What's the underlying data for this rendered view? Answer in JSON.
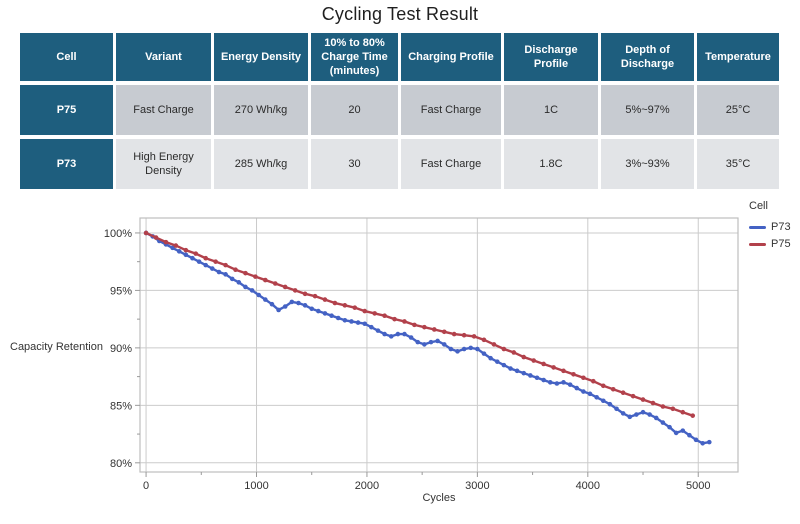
{
  "title": "Cycling Test Result",
  "table": {
    "headers": [
      "Cell",
      "Variant",
      "Energy Density",
      "10% to 80% Charge Time (minutes)",
      "Charging Profile",
      "Discharge Profile",
      "Depth of Discharge",
      "Temperature"
    ],
    "rows": [
      {
        "cell": "P75",
        "variant": "Fast Charge",
        "energy_density": "270 Wh/kg",
        "charge_time": "20",
        "charging_profile": "Fast Charge",
        "discharge_profile": "1C",
        "depth_of_discharge": "5%~97%",
        "temperature": "25°C"
      },
      {
        "cell": "P73",
        "variant": "High Energy Density",
        "energy_density": "285 Wh/kg",
        "charge_time": "30",
        "charging_profile": "Fast Charge",
        "discharge_profile": "1.8C",
        "depth_of_discharge": "3%~93%",
        "temperature": "35°C"
      }
    ]
  },
  "colors": {
    "teal": "#1E5E7E",
    "row1": "#C7CBD1",
    "row2": "#E2E4E7",
    "grid": "#CBCBCB",
    "axis_text": "#333333",
    "p73_blue": "#4462C4",
    "p75_red": "#B2414B"
  },
  "chart_data": {
    "type": "line",
    "title": "",
    "xlabel": "Cycles",
    "ylabel": "Capacity Retention",
    "legend_title": "Cell",
    "legend_position": "right-top",
    "grid": true,
    "xlim": [
      -55,
      5360
    ],
    "ylim": [
      79.2,
      101.3
    ],
    "x_ticks": [
      0,
      1000,
      2000,
      3000,
      4000,
      5000
    ],
    "x_minor_ticks": [
      500,
      1500,
      2500,
      3500,
      4500
    ],
    "y_ticks": [
      100,
      95,
      90,
      85,
      80
    ],
    "y_minor_ticks": [
      97.5,
      92.5,
      87.5,
      82.5
    ],
    "y_tick_suffix": "%",
    "series": [
      {
        "name": "P73",
        "color": "#4462C4",
        "points": [
          [
            0,
            100
          ],
          [
            60,
            99.7
          ],
          [
            120,
            99.3
          ],
          [
            180,
            99.0
          ],
          [
            240,
            98.7
          ],
          [
            300,
            98.4
          ],
          [
            360,
            98.1
          ],
          [
            420,
            97.8
          ],
          [
            480,
            97.5
          ],
          [
            540,
            97.2
          ],
          [
            600,
            96.9
          ],
          [
            660,
            96.6
          ],
          [
            720,
            96.4
          ],
          [
            780,
            96.0
          ],
          [
            840,
            95.7
          ],
          [
            900,
            95.3
          ],
          [
            960,
            95.0
          ],
          [
            1020,
            94.6
          ],
          [
            1080,
            94.2
          ],
          [
            1140,
            93.8
          ],
          [
            1200,
            93.3
          ],
          [
            1260,
            93.6
          ],
          [
            1320,
            94.0
          ],
          [
            1380,
            93.9
          ],
          [
            1440,
            93.7
          ],
          [
            1500,
            93.4
          ],
          [
            1560,
            93.2
          ],
          [
            1620,
            93.0
          ],
          [
            1680,
            92.8
          ],
          [
            1740,
            92.6
          ],
          [
            1800,
            92.4
          ],
          [
            1860,
            92.3
          ],
          [
            1920,
            92.2
          ],
          [
            1980,
            92.1
          ],
          [
            2040,
            91.8
          ],
          [
            2100,
            91.5
          ],
          [
            2160,
            91.2
          ],
          [
            2220,
            91.0
          ],
          [
            2280,
            91.2
          ],
          [
            2340,
            91.2
          ],
          [
            2400,
            90.9
          ],
          [
            2460,
            90.5
          ],
          [
            2520,
            90.3
          ],
          [
            2580,
            90.5
          ],
          [
            2640,
            90.6
          ],
          [
            2700,
            90.3
          ],
          [
            2760,
            89.9
          ],
          [
            2820,
            89.7
          ],
          [
            2880,
            89.9
          ],
          [
            2940,
            90.0
          ],
          [
            3000,
            89.9
          ],
          [
            3060,
            89.5
          ],
          [
            3120,
            89.1
          ],
          [
            3180,
            88.8
          ],
          [
            3240,
            88.5
          ],
          [
            3300,
            88.2
          ],
          [
            3360,
            88.0
          ],
          [
            3420,
            87.8
          ],
          [
            3480,
            87.6
          ],
          [
            3540,
            87.4
          ],
          [
            3600,
            87.2
          ],
          [
            3660,
            87.0
          ],
          [
            3720,
            86.9
          ],
          [
            3780,
            87.0
          ],
          [
            3840,
            86.8
          ],
          [
            3900,
            86.5
          ],
          [
            3960,
            86.2
          ],
          [
            4020,
            86.0
          ],
          [
            4080,
            85.7
          ],
          [
            4140,
            85.4
          ],
          [
            4200,
            85.1
          ],
          [
            4260,
            84.7
          ],
          [
            4320,
            84.3
          ],
          [
            4380,
            84.0
          ],
          [
            4440,
            84.2
          ],
          [
            4500,
            84.4
          ],
          [
            4560,
            84.2
          ],
          [
            4620,
            83.9
          ],
          [
            4680,
            83.5
          ],
          [
            4740,
            83.1
          ],
          [
            4800,
            82.6
          ],
          [
            4860,
            82.8
          ],
          [
            4920,
            82.4
          ],
          [
            4980,
            82.0
          ],
          [
            5040,
            81.7
          ],
          [
            5100,
            81.8
          ]
        ]
      },
      {
        "name": "P75",
        "color": "#B2414B",
        "points": [
          [
            0,
            100
          ],
          [
            90,
            99.6
          ],
          [
            180,
            99.2
          ],
          [
            270,
            98.9
          ],
          [
            360,
            98.5
          ],
          [
            450,
            98.2
          ],
          [
            540,
            97.8
          ],
          [
            630,
            97.5
          ],
          [
            720,
            97.2
          ],
          [
            810,
            96.8
          ],
          [
            900,
            96.5
          ],
          [
            990,
            96.2
          ],
          [
            1080,
            95.9
          ],
          [
            1170,
            95.6
          ],
          [
            1260,
            95.3
          ],
          [
            1350,
            95.0
          ],
          [
            1440,
            94.7
          ],
          [
            1530,
            94.5
          ],
          [
            1620,
            94.2
          ],
          [
            1710,
            93.9
          ],
          [
            1800,
            93.7
          ],
          [
            1890,
            93.5
          ],
          [
            1980,
            93.2
          ],
          [
            2070,
            93.0
          ],
          [
            2160,
            92.8
          ],
          [
            2250,
            92.5
          ],
          [
            2340,
            92.3
          ],
          [
            2430,
            92.0
          ],
          [
            2520,
            91.8
          ],
          [
            2610,
            91.6
          ],
          [
            2700,
            91.4
          ],
          [
            2790,
            91.2
          ],
          [
            2880,
            91.1
          ],
          [
            2970,
            91.0
          ],
          [
            3060,
            90.7
          ],
          [
            3150,
            90.3
          ],
          [
            3240,
            89.9
          ],
          [
            3330,
            89.6
          ],
          [
            3420,
            89.2
          ],
          [
            3510,
            88.9
          ],
          [
            3600,
            88.6
          ],
          [
            3690,
            88.3
          ],
          [
            3780,
            88.0
          ],
          [
            3870,
            87.7
          ],
          [
            3960,
            87.4
          ],
          [
            4050,
            87.1
          ],
          [
            4140,
            86.7
          ],
          [
            4230,
            86.4
          ],
          [
            4320,
            86.1
          ],
          [
            4410,
            85.8
          ],
          [
            4500,
            85.5
          ],
          [
            4590,
            85.2
          ],
          [
            4680,
            84.9
          ],
          [
            4770,
            84.7
          ],
          [
            4860,
            84.4
          ],
          [
            4950,
            84.1
          ]
        ]
      }
    ]
  }
}
